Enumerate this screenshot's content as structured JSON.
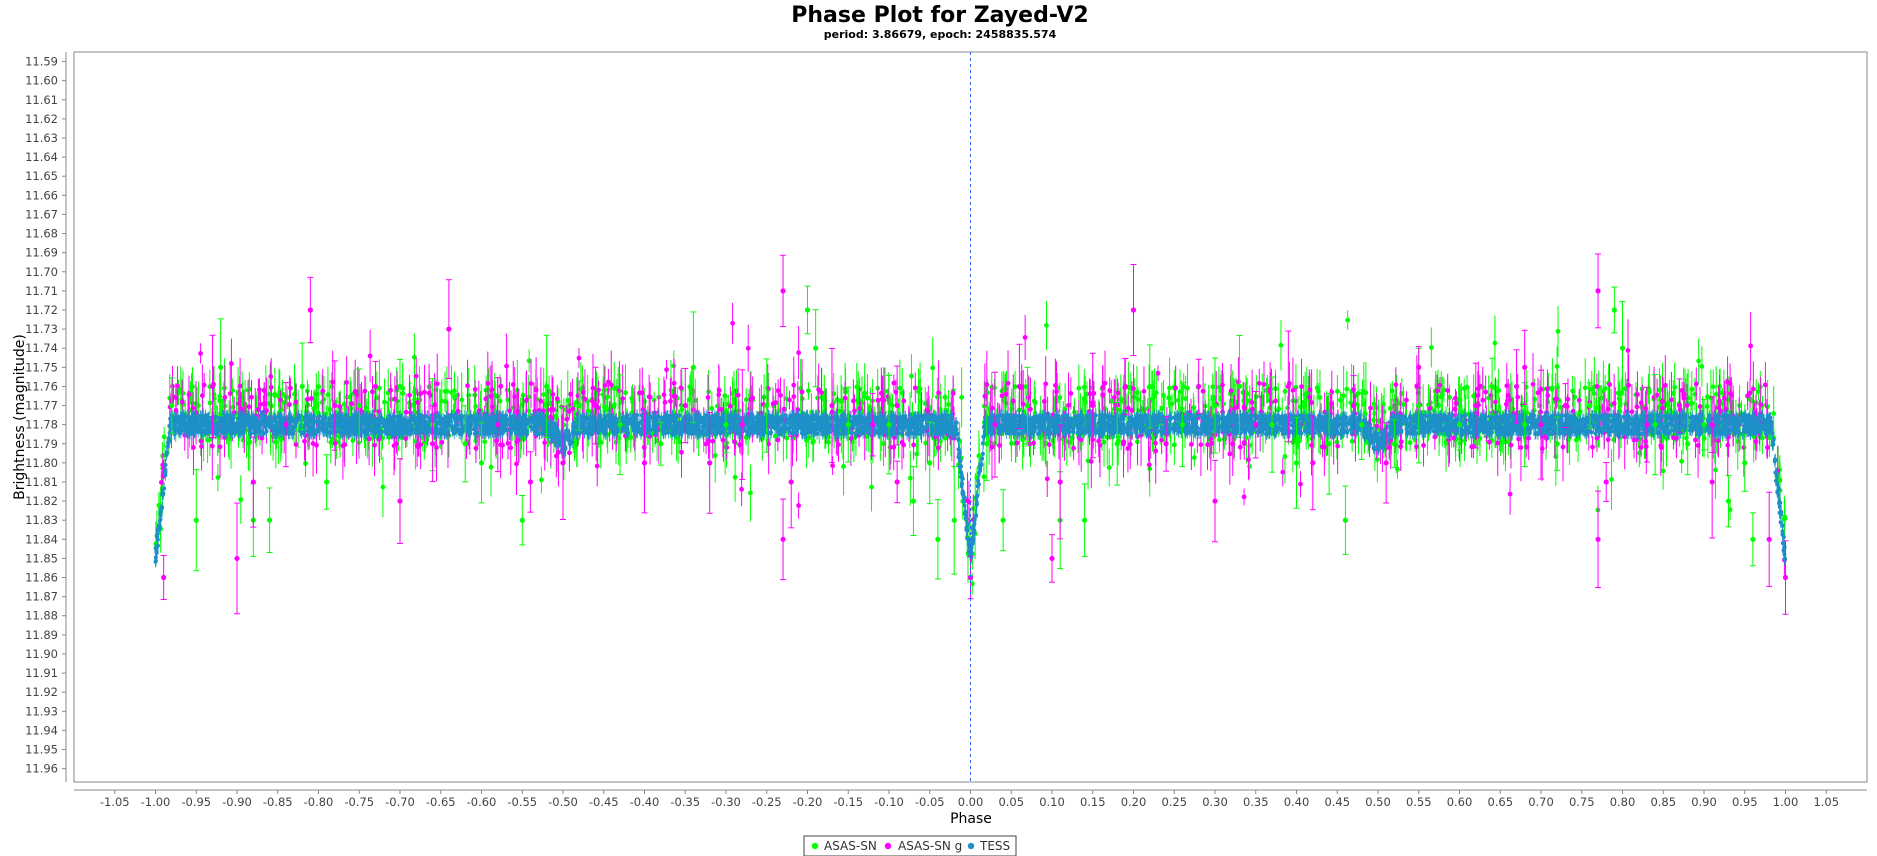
{
  "chart_data": {
    "type": "scatter",
    "title": "Phase Plot for Zayed-V2",
    "subtitle": "period: 3.86679, epoch: 2458835.574",
    "xlabel": "Phase",
    "ylabel": "Brightness (magnitude)",
    "xlim": [
      -1.1,
      1.1
    ],
    "ylim": [
      11.967,
      11.585
    ],
    "y_inverted": true,
    "x_ticks": [
      "-1.05",
      "-1.00",
      "-0.95",
      "-0.90",
      "-0.85",
      "-0.80",
      "-0.75",
      "-0.70",
      "-0.65",
      "-0.60",
      "-0.55",
      "-0.50",
      "-0.45",
      "-0.40",
      "-0.35",
      "-0.30",
      "-0.25",
      "-0.20",
      "-0.15",
      "-0.10",
      "-0.05",
      "0.00",
      "0.05",
      "0.10",
      "0.15",
      "0.20",
      "0.25",
      "0.30",
      "0.35",
      "0.40",
      "0.45",
      "0.50",
      "0.55",
      "0.60",
      "0.65",
      "0.70",
      "0.75",
      "0.80",
      "0.85",
      "0.90",
      "0.95",
      "1.00",
      "1.05"
    ],
    "y_ticks": [
      "11.59",
      "11.60",
      "11.61",
      "11.62",
      "11.63",
      "11.64",
      "11.65",
      "11.66",
      "11.67",
      "11.68",
      "11.69",
      "11.70",
      "11.71",
      "11.72",
      "11.73",
      "11.74",
      "11.75",
      "11.76",
      "11.77",
      "11.78",
      "11.79",
      "11.80",
      "11.81",
      "11.82",
      "11.83",
      "11.84",
      "11.85",
      "11.86",
      "11.87",
      "11.88",
      "11.89",
      "11.90",
      "11.91",
      "11.92",
      "11.93",
      "11.94",
      "11.95",
      "11.96"
    ],
    "marker_line_x": 0.0,
    "legend_position": "bottom-center",
    "light_curve": {
      "baseline_mag": 11.78,
      "primary_eclipse": {
        "phase": 0.0,
        "depth_mag": 11.85,
        "half_width": 0.018
      },
      "secondary_eclipse": {
        "phase": 0.5,
        "depth_mag": 11.79,
        "half_width": 0.02
      }
    },
    "series": [
      {
        "name": "ASAS-SN",
        "color": "#00ff00",
        "points": [
          [
            -0.98,
            11.77
          ],
          [
            -0.95,
            11.83
          ],
          [
            -0.92,
            11.75
          ],
          [
            -0.88,
            11.83
          ],
          [
            -0.86,
            11.83
          ],
          [
            -0.82,
            11.76
          ],
          [
            -0.79,
            11.81
          ],
          [
            -0.75,
            11.77
          ],
          [
            -0.7,
            11.76
          ],
          [
            -0.66,
            11.78
          ],
          [
            -0.62,
            11.79
          ],
          [
            -0.6,
            11.8
          ],
          [
            -0.55,
            11.83
          ],
          [
            -0.52,
            11.76
          ],
          [
            -0.48,
            11.77
          ],
          [
            -0.43,
            11.78
          ],
          [
            -0.38,
            11.79
          ],
          [
            -0.34,
            11.75
          ],
          [
            -0.3,
            11.78
          ],
          [
            -0.25,
            11.77
          ],
          [
            -0.2,
            11.72
          ],
          [
            -0.19,
            11.74
          ],
          [
            -0.15,
            11.78
          ],
          [
            -0.1,
            11.78
          ],
          [
            -0.07,
            11.82
          ],
          [
            -0.05,
            11.8
          ],
          [
            -0.04,
            11.84
          ],
          [
            -0.02,
            11.83
          ],
          [
            0.02,
            11.79
          ],
          [
            0.04,
            11.83
          ],
          [
            0.07,
            11.77
          ],
          [
            0.11,
            11.83
          ],
          [
            0.14,
            11.83
          ],
          [
            0.18,
            11.79
          ],
          [
            0.22,
            11.76
          ],
          [
            0.26,
            11.78
          ],
          [
            0.3,
            11.77
          ],
          [
            0.33,
            11.76
          ],
          [
            0.37,
            11.78
          ],
          [
            0.4,
            11.8
          ],
          [
            0.44,
            11.79
          ],
          [
            0.46,
            11.83
          ],
          [
            0.48,
            11.78
          ],
          [
            0.52,
            11.79
          ],
          [
            0.55,
            11.77
          ],
          [
            0.6,
            11.78
          ],
          [
            0.64,
            11.76
          ],
          [
            0.68,
            11.78
          ],
          [
            0.72,
            11.79
          ],
          [
            0.76,
            11.77
          ],
          [
            0.79,
            11.72
          ],
          [
            0.8,
            11.74
          ],
          [
            0.84,
            11.78
          ],
          [
            0.88,
            11.79
          ],
          [
            0.9,
            11.78
          ],
          [
            0.93,
            11.82
          ],
          [
            0.95,
            11.8
          ],
          [
            0.96,
            11.84
          ]
        ]
      },
      {
        "name": "ASAS-SN g",
        "color": "#ff00ff",
        "points": [
          [
            -0.99,
            11.86
          ],
          [
            -0.93,
            11.76
          ],
          [
            -0.9,
            11.85
          ],
          [
            -0.88,
            11.81
          ],
          [
            -0.84,
            11.78
          ],
          [
            -0.81,
            11.72
          ],
          [
            -0.78,
            11.77
          ],
          [
            -0.73,
            11.76
          ],
          [
            -0.7,
            11.82
          ],
          [
            -0.66,
            11.79
          ],
          [
            -0.64,
            11.73
          ],
          [
            -0.58,
            11.78
          ],
          [
            -0.54,
            11.81
          ],
          [
            -0.5,
            11.8
          ],
          [
            -0.46,
            11.77
          ],
          [
            -0.4,
            11.8
          ],
          [
            -0.35,
            11.77
          ],
          [
            -0.32,
            11.8
          ],
          [
            -0.28,
            11.78
          ],
          [
            -0.23,
            11.71
          ],
          [
            -0.23,
            11.84
          ],
          [
            -0.22,
            11.81
          ],
          [
            -0.17,
            11.77
          ],
          [
            -0.12,
            11.78
          ],
          [
            -0.09,
            11.77
          ],
          [
            -0.09,
            11.81
          ],
          [
            0.0,
            11.86
          ],
          [
            0.03,
            11.78
          ],
          [
            0.06,
            11.76
          ],
          [
            0.1,
            11.85
          ],
          [
            0.11,
            11.81
          ],
          [
            0.15,
            11.77
          ],
          [
            0.19,
            11.76
          ],
          [
            0.2,
            11.72
          ],
          [
            0.24,
            11.79
          ],
          [
            0.28,
            11.76
          ],
          [
            0.3,
            11.82
          ],
          [
            0.35,
            11.78
          ],
          [
            0.39,
            11.76
          ],
          [
            0.42,
            11.8
          ],
          [
            0.47,
            11.77
          ],
          [
            0.51,
            11.8
          ],
          [
            0.55,
            11.75
          ],
          [
            0.62,
            11.77
          ],
          [
            0.67,
            11.76
          ],
          [
            0.68,
            11.75
          ],
          [
            0.7,
            11.78
          ],
          [
            0.73,
            11.77
          ],
          [
            0.77,
            11.71
          ],
          [
            0.77,
            11.84
          ],
          [
            0.78,
            11.81
          ],
          [
            0.83,
            11.78
          ],
          [
            0.87,
            11.77
          ],
          [
            0.91,
            11.78
          ],
          [
            0.91,
            11.81
          ],
          [
            0.98,
            11.84
          ],
          [
            1.0,
            11.86
          ]
        ]
      },
      {
        "name": "TESS",
        "color": "#1e90c8",
        "points": []
      }
    ]
  }
}
